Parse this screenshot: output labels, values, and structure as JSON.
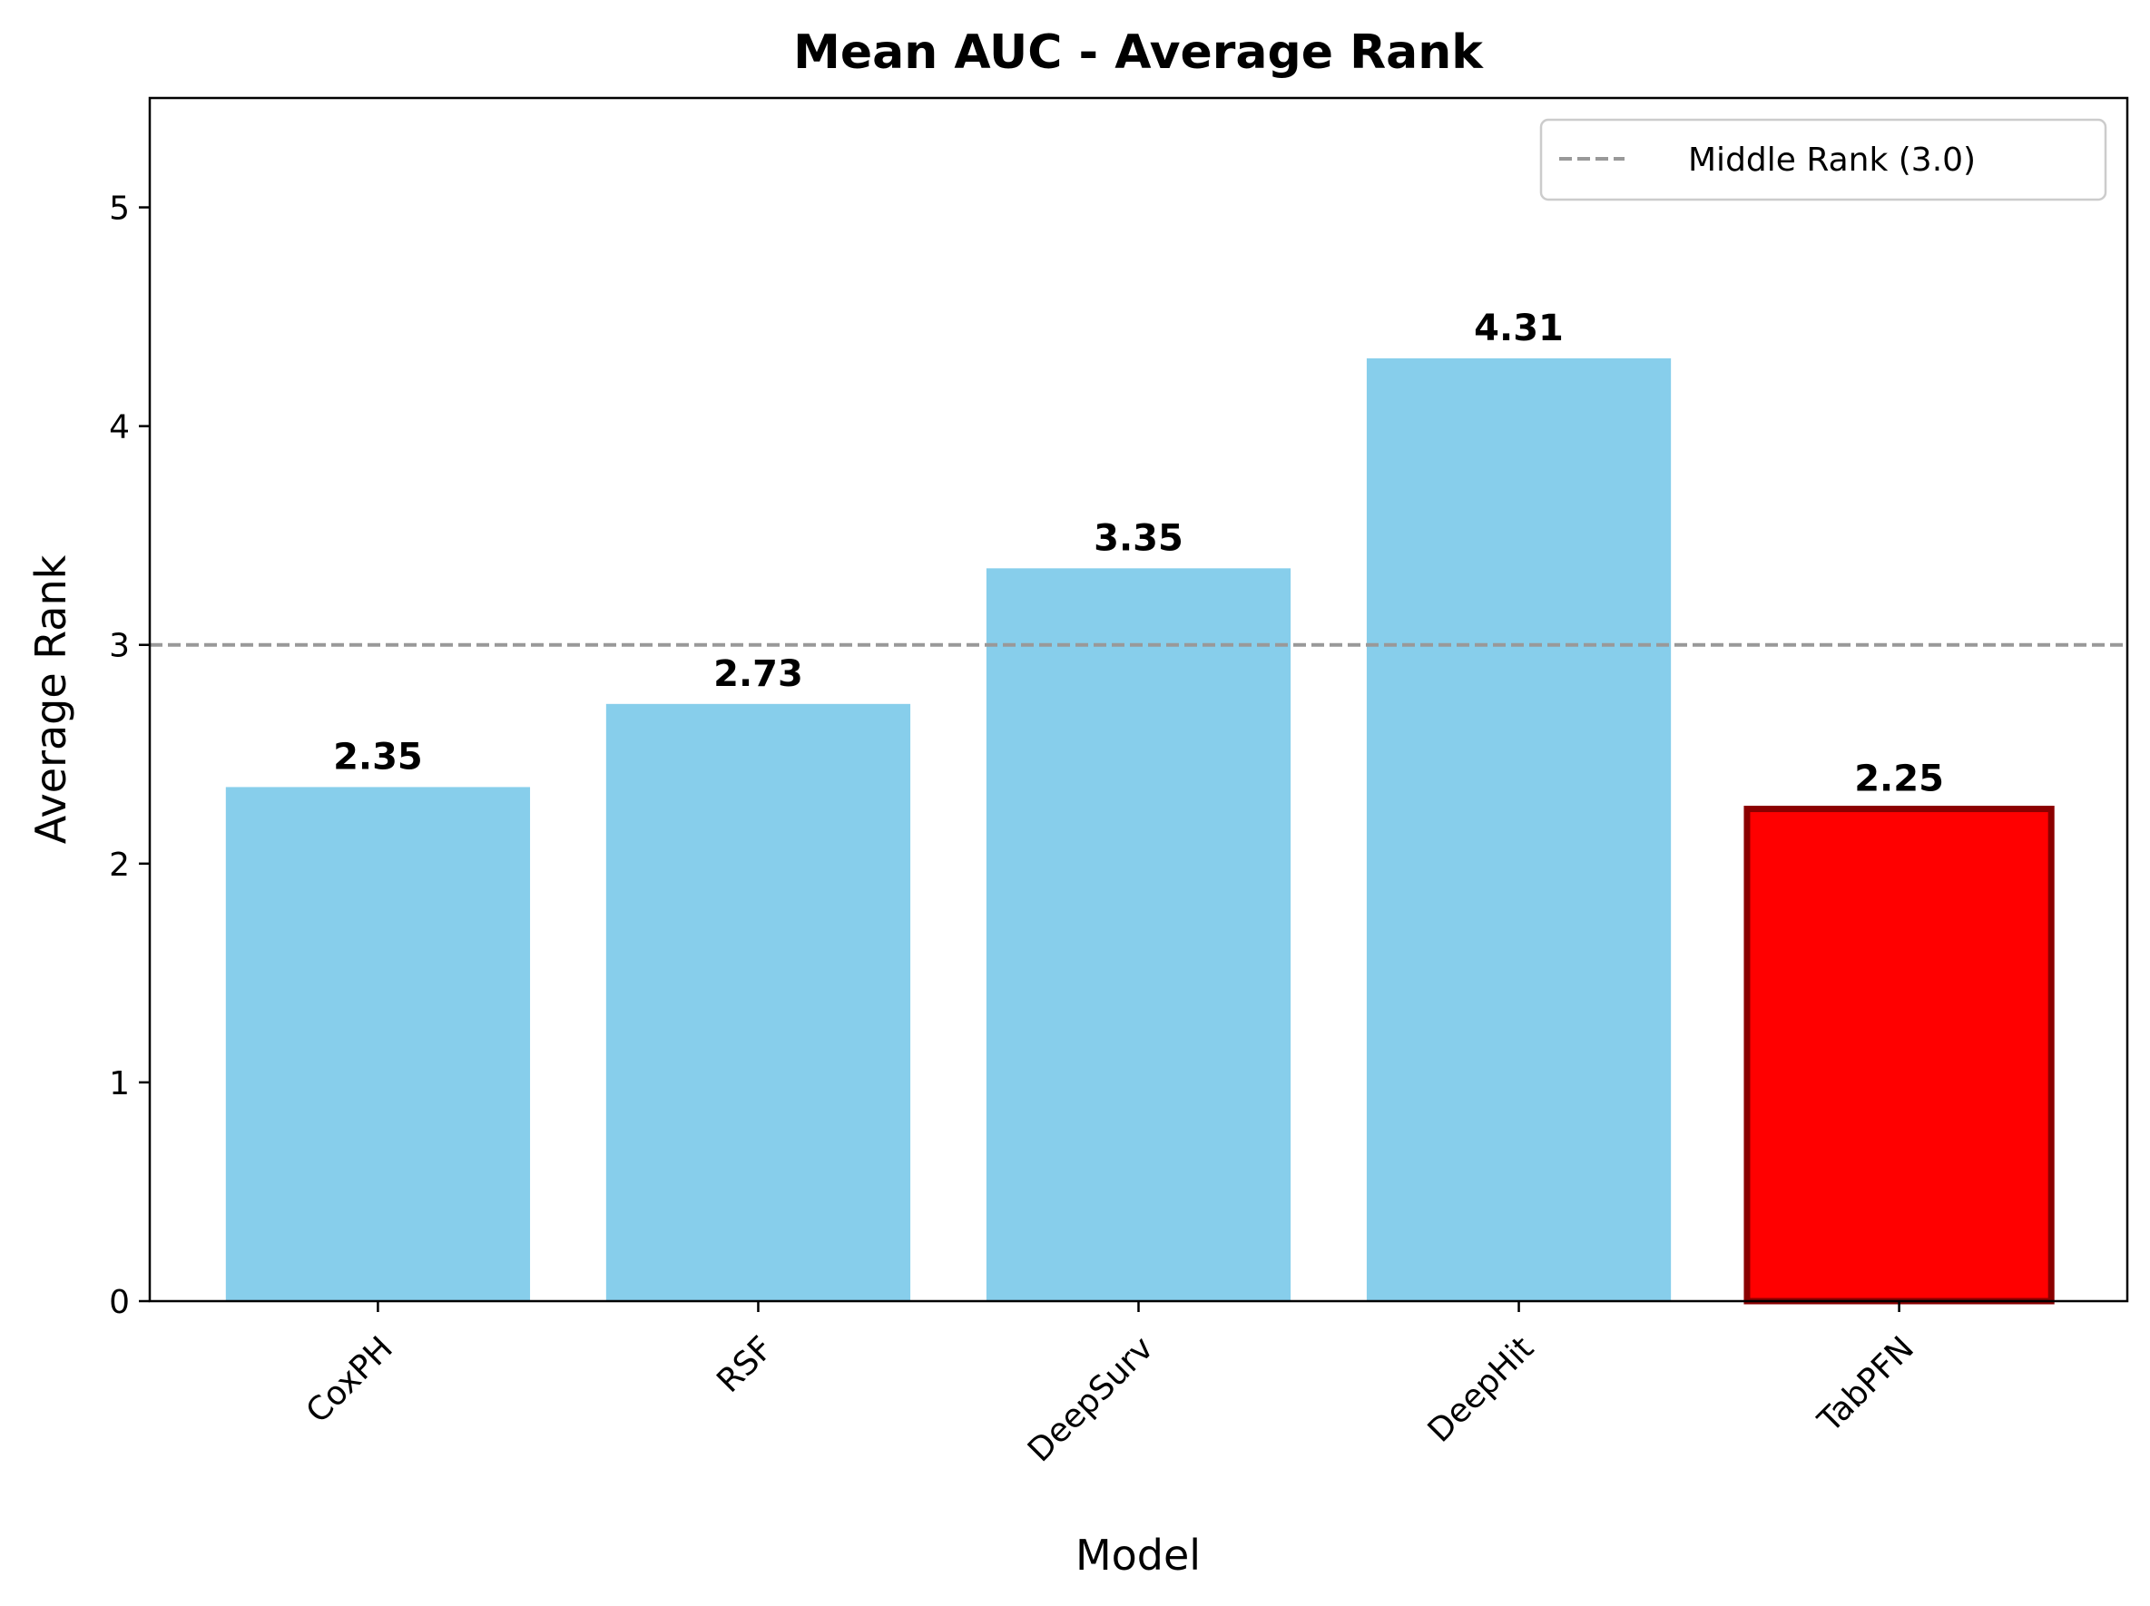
{
  "chart_data": {
    "type": "bar",
    "title": "Mean AUC - Average Rank",
    "xlabel": "Model",
    "ylabel": "Average Rank",
    "categories": [
      "CoxPH",
      "RSF",
      "DeepSurv",
      "DeepHit",
      "TabPFN"
    ],
    "values": [
      2.35,
      2.73,
      3.35,
      4.31,
      2.25
    ],
    "value_labels": [
      "2.35",
      "2.73",
      "3.35",
      "4.31",
      "2.25"
    ],
    "ylim": [
      0,
      5.5
    ],
    "yticks": [
      "0",
      "1",
      "2",
      "3",
      "4",
      "5"
    ],
    "grid": false,
    "legend": {
      "position": "top-right",
      "entries": [
        {
          "label": "Middle Rank (3.0)",
          "style": "dashed-line"
        }
      ]
    },
    "reference_line": {
      "y": 3.0,
      "color": "#999999",
      "style": "dashed"
    },
    "colors": {
      "default_bar": "#87CEEB",
      "highlight_bar": "#FF0000",
      "highlight_edge": "#8B0000"
    },
    "highlight_category": "TabPFN"
  }
}
